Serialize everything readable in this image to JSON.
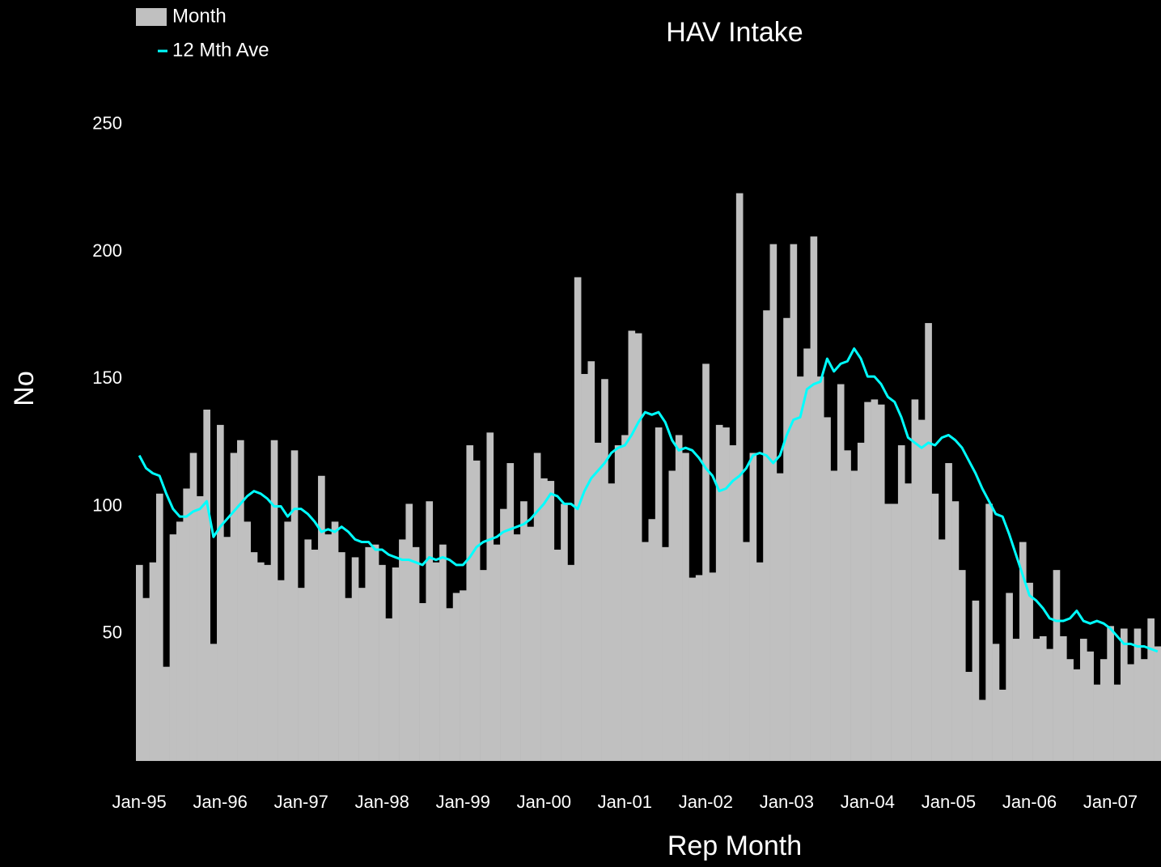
{
  "chart_data": {
    "type": "bar-line",
    "title": "HAV Intake",
    "x_label": "Rep Month",
    "y_label": "No",
    "categories": [
      "Jan-95",
      null,
      null,
      null,
      null,
      null,
      null,
      null,
      null,
      null,
      null,
      null,
      "Jan-96",
      null,
      null,
      null,
      null,
      null,
      null,
      null,
      null,
      null,
      null,
      null,
      "Jan-97",
      null,
      null,
      null,
      null,
      null,
      null,
      null,
      null,
      null,
      null,
      null,
      "Jan-98",
      null,
      null,
      null,
      null,
      null,
      null,
      null,
      null,
      null,
      null,
      null,
      "Jan-99",
      null,
      null,
      null,
      null,
      null,
      null,
      null,
      null,
      null,
      null,
      null,
      "Jan-00",
      null,
      null,
      null,
      null,
      null,
      null,
      null,
      null,
      null,
      null,
      null,
      "Jan-01",
      null,
      null,
      null,
      null,
      null,
      null,
      null,
      null,
      null,
      null,
      null,
      "Jan-02",
      null,
      null,
      null,
      null,
      null,
      null,
      null,
      null,
      null,
      null,
      null,
      "Jan-03",
      null,
      null,
      null,
      null,
      null,
      null,
      null,
      null,
      null,
      null,
      null,
      "Jan-04",
      null,
      null,
      null,
      null,
      null,
      null,
      null,
      null,
      null,
      null,
      null,
      "Jan-05",
      null,
      null,
      null,
      null,
      null,
      null,
      null,
      null,
      null,
      null,
      null,
      "Jan-06",
      null,
      null,
      null,
      null,
      null,
      null,
      null,
      null,
      null,
      null,
      null,
      "Jan-07",
      null,
      null,
      null,
      null,
      null,
      null,
      null
    ],
    "series": [
      {
        "name": "Month",
        "type": "bar",
        "color": "#c0c0c0",
        "values": [
          77,
          64,
          78,
          105,
          37,
          89,
          94,
          107,
          121,
          104,
          138,
          46,
          132,
          88,
          121,
          126,
          94,
          82,
          78,
          77,
          126,
          71,
          94,
          122,
          68,
          87,
          83,
          112,
          89,
          94,
          82,
          64,
          80,
          68,
          84,
          85,
          77,
          56,
          76,
          87,
          101,
          84,
          62,
          102,
          78,
          85,
          60,
          66,
          67,
          124,
          118,
          75,
          129,
          85,
          99,
          117,
          89,
          102,
          92,
          121,
          111,
          110,
          83,
          101,
          77,
          190,
          152,
          157,
          125,
          150,
          109,
          124,
          128,
          169,
          168,
          86,
          95,
          131,
          84,
          114,
          128,
          121,
          72,
          73,
          156,
          74,
          132,
          131,
          124,
          223,
          86,
          121,
          78,
          177,
          203,
          113,
          174,
          203,
          151,
          162,
          206,
          151,
          135,
          114,
          148,
          122,
          114,
          125,
          141,
          142,
          140,
          101,
          101,
          124,
          109,
          142,
          134,
          172,
          105,
          87,
          117,
          102,
          75,
          35,
          63,
          24,
          101,
          46,
          28,
          66,
          48,
          86,
          70,
          48,
          49,
          44,
          75,
          49,
          40,
          36,
          48,
          43,
          30,
          40,
          53,
          30,
          52,
          38,
          52,
          40,
          56,
          45
        ]
      },
      {
        "name": "12 Mth Ave",
        "type": "line",
        "color": "#00ffff",
        "values": [
          120,
          115,
          113,
          112,
          105,
          99,
          96,
          96,
          98,
          99,
          102,
          88,
          92,
          95,
          98,
          101,
          104,
          106,
          105,
          103,
          100,
          100,
          96,
          99,
          99,
          97,
          94,
          90,
          91,
          90,
          92,
          90,
          87,
          86,
          86,
          83,
          83,
          81,
          80,
          79,
          79,
          78,
          77,
          80,
          79,
          80,
          79,
          77,
          77,
          80,
          84,
          86,
          87,
          88,
          90,
          91,
          92,
          93,
          95,
          98,
          101,
          105,
          104,
          101,
          101,
          99,
          106,
          111,
          114,
          117,
          121,
          123,
          124,
          128,
          133,
          137,
          136,
          137,
          133,
          126,
          122,
          123,
          122,
          119,
          115,
          112,
          106,
          107,
          110,
          112,
          115,
          120,
          121,
          120,
          117,
          120,
          128,
          134,
          135,
          146,
          148,
          149,
          158,
          153,
          156,
          157,
          162,
          158,
          151,
          151,
          148,
          143,
          141,
          135,
          127,
          125,
          123,
          125,
          124,
          127,
          128,
          126,
          123,
          118,
          113,
          107,
          102,
          97,
          96,
          89,
          81,
          73,
          65,
          63,
          60,
          56,
          55,
          55,
          56,
          59,
          55,
          54,
          55,
          54,
          52,
          49,
          46,
          46,
          45,
          45,
          44,
          43
        ]
      }
    ],
    "ylim": [
      -4,
      258
    ],
    "yticks": [
      50,
      100,
      150,
      200,
      250
    ],
    "grid": false,
    "legend": "top left"
  }
}
